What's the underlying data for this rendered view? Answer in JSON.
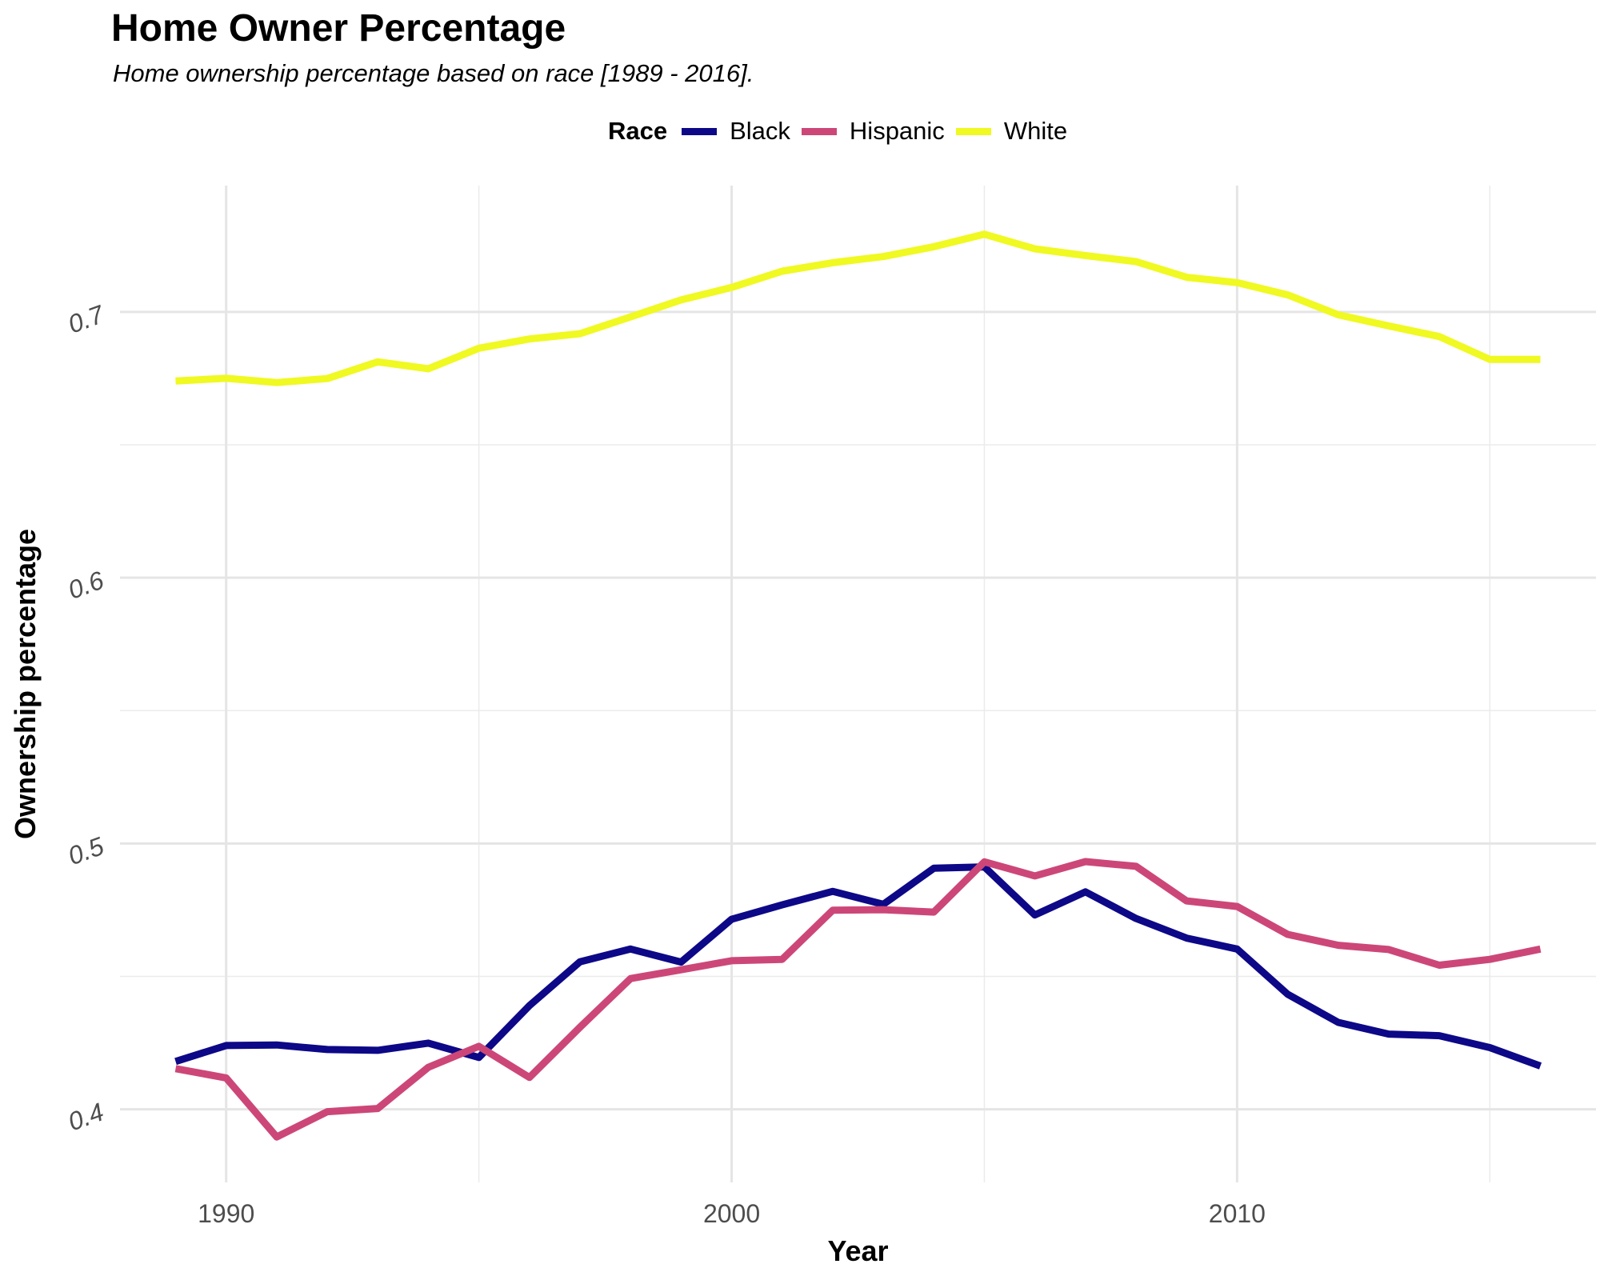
{
  "chart_data": {
    "type": "line",
    "title": "Home Owner Percentage",
    "subtitle": "Home ownership percentage based on race [1989 - 2016].",
    "xlabel": "Year",
    "ylabel": "Ownership percentage",
    "legend_title": "Race",
    "legend_position": "top",
    "grid": true,
    "xlim": [
      1987.9,
      2017.1
    ],
    "ylim": [
      0.3725,
      0.7475
    ],
    "x_ticks": [
      1990,
      2000,
      2010
    ],
    "y_ticks": [
      0.4,
      0.5,
      0.6,
      0.7
    ],
    "x_tick_labels": [
      "1990",
      "2000",
      "2010"
    ],
    "y_tick_labels": [
      "0.4",
      "0.5",
      "0.6",
      "0.7"
    ],
    "x": [
      1989,
      1990,
      1991,
      1992,
      1993,
      1994,
      1995,
      1996,
      1997,
      1998,
      1999,
      2000,
      2001,
      2002,
      2003,
      2004,
      2005,
      2006,
      2007,
      2008,
      2009,
      2010,
      2011,
      2012,
      2013,
      2014,
      2015,
      2016
    ],
    "series": [
      {
        "name": "Black",
        "color": "#0d0887",
        "values": [
          0.418,
          0.424,
          0.4242,
          0.4225,
          0.4222,
          0.4249,
          0.4195,
          0.439,
          0.4555,
          0.4603,
          0.4554,
          0.4715,
          0.4769,
          0.482,
          0.4771,
          0.4907,
          0.4912,
          0.4731,
          0.4818,
          0.4718,
          0.4644,
          0.4603,
          0.4433,
          0.4327,
          0.4283,
          0.4277,
          0.4232,
          0.4163
        ]
      },
      {
        "name": "Hispanic",
        "color": "#cc4778",
        "values": [
          0.4153,
          0.4118,
          0.3896,
          0.3991,
          0.4003,
          0.4158,
          0.4237,
          0.412,
          0.4309,
          0.4492,
          0.4525,
          0.4559,
          0.4564,
          0.4749,
          0.4751,
          0.4742,
          0.4931,
          0.4878,
          0.4932,
          0.4914,
          0.4784,
          0.4763,
          0.4658,
          0.4617,
          0.4601,
          0.4542,
          0.4564,
          0.4603
        ]
      },
      {
        "name": "White",
        "color": "#f0f921",
        "values": [
          0.674,
          0.675,
          0.6734,
          0.6749,
          0.6812,
          0.6786,
          0.6863,
          0.6898,
          0.6918,
          0.6981,
          0.7045,
          0.7092,
          0.7153,
          0.7185,
          0.7208,
          0.7245,
          0.7292,
          0.7237,
          0.7212,
          0.7189,
          0.713,
          0.711,
          0.7064,
          0.6989,
          0.6947,
          0.6907,
          0.6821,
          0.6821
        ]
      }
    ]
  }
}
